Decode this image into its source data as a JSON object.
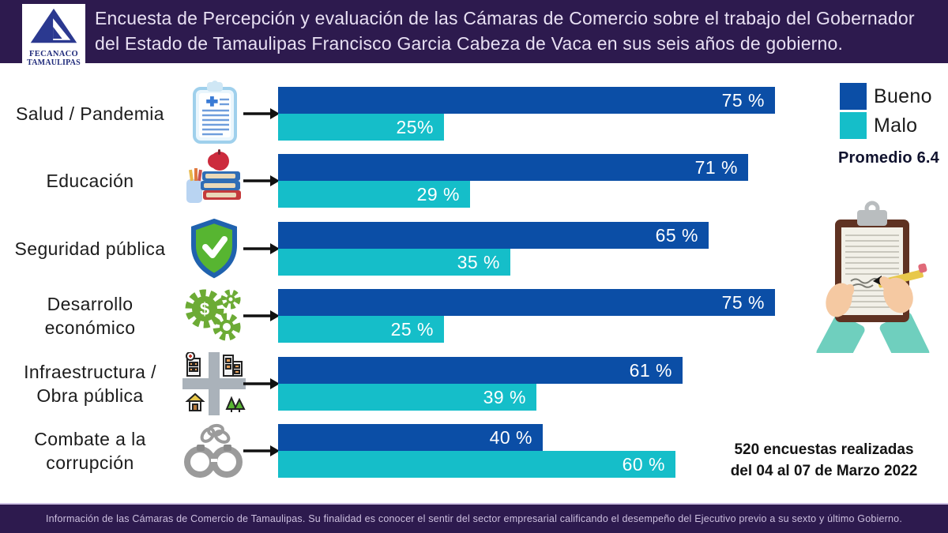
{
  "header": {
    "logo": {
      "org": "FECANACO",
      "region": "TAMAULIPAS"
    },
    "title": "Encuesta de Percepción y evaluación de las Cámaras de Comercio sobre el trabajo del Gobernador\ndel Estado de Tamaulipas Francisco Garcia Cabeza de Vaca en sus seis años de gobierno."
  },
  "chart_data": {
    "type": "bar",
    "orientation": "horizontal",
    "xlim": [
      0,
      100
    ],
    "value_unit": "%",
    "categories": [
      "Salud / Pandemia",
      "Educación",
      "Seguridad pública",
      "Desarrollo\neconómico",
      "Infraestructura /\nObra pública",
      "Combate a la\ncorrupción"
    ],
    "category_icons": [
      "medical-clipboard-icon",
      "books-apple-icon",
      "shield-check-icon",
      "gears-dollar-icon",
      "city-infrastructure-icon",
      "handcuffs-icon"
    ],
    "series": [
      {
        "name": "Bueno",
        "color": "#0b4ea6",
        "values": [
          75,
          71,
          65,
          75,
          61,
          40
        ],
        "display_labels": [
          "75 %",
          "71 %",
          "65 %",
          "75 %",
          "61 %",
          "40 %"
        ]
      },
      {
        "name": "Malo",
        "color": "#15bec9",
        "values": [
          25,
          29,
          35,
          25,
          39,
          60
        ],
        "display_labels": [
          "25%",
          "29 %",
          "35 %",
          "25 %",
          "39 %",
          "60 %"
        ]
      }
    ]
  },
  "legend": {
    "items": [
      {
        "label": "Bueno",
        "color": "#0b4ea6"
      },
      {
        "label": "Malo",
        "color": "#15bec9"
      }
    ],
    "note": "Promedio 6.4"
  },
  "survey_note": "520 encuestas realizadas\ndel 04 al 07 de Marzo 2022",
  "footer": {
    "text": "Información de las Cámaras de Comercio de Tamaulipas. Su finalidad es conocer el sentir del sector empresarial calificando el desempeño del Ejecutivo previo a su sexto y último Gobierno."
  }
}
